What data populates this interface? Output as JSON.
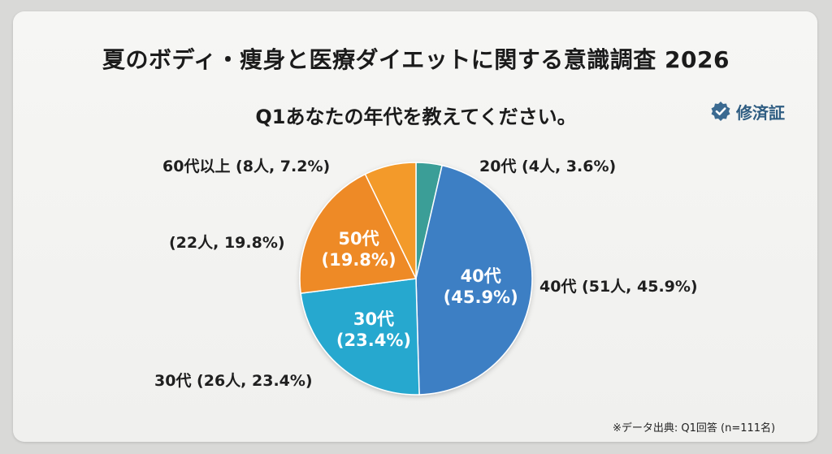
{
  "title": "夏のボディ・痩身と医療ダイエットに関する意識調査 2026",
  "question": "Q1あなたの年代を教えてください。",
  "badge_label": "修済証",
  "source_note": "※データ出典: Q1回答 (n=111名)",
  "chart_data": {
    "type": "pie",
    "title": "夏のボディ・痩身と医療ダイエットに関する意識調査 2026",
    "subtitle": "Q1あなたの年代を教えてください。",
    "total_n": 111,
    "slices": [
      {
        "category": "20代",
        "count": 4,
        "percent": 3.6,
        "color": "#3a9e97",
        "outer_label": "20代 (4人, 3.6%)",
        "inner_label": ""
      },
      {
        "category": "40代",
        "count": 51,
        "percent": 45.9,
        "color": "#3d7fc4",
        "outer_label": "40代 (51人, 45.9%)",
        "inner_label": "40代",
        "inner_pct": "(45.9%)"
      },
      {
        "category": "30代",
        "count": 26,
        "percent": 23.4,
        "color": "#25a8cf",
        "outer_label": "30代 (26人, 23.4%)",
        "inner_label": "30代",
        "inner_pct": "(23.4%)"
      },
      {
        "category": "50代",
        "count": 22,
        "percent": 19.8,
        "color": "#ee8a26",
        "outer_label": "(22人, 19.8%)",
        "inner_label": "50代",
        "inner_pct": "(19.8%)"
      },
      {
        "category": "60代以上",
        "count": 8,
        "percent": 7.2,
        "color": "#f39a2a",
        "outer_label": "60代以上 (8人, 7.2%)",
        "inner_label": ""
      }
    ]
  }
}
